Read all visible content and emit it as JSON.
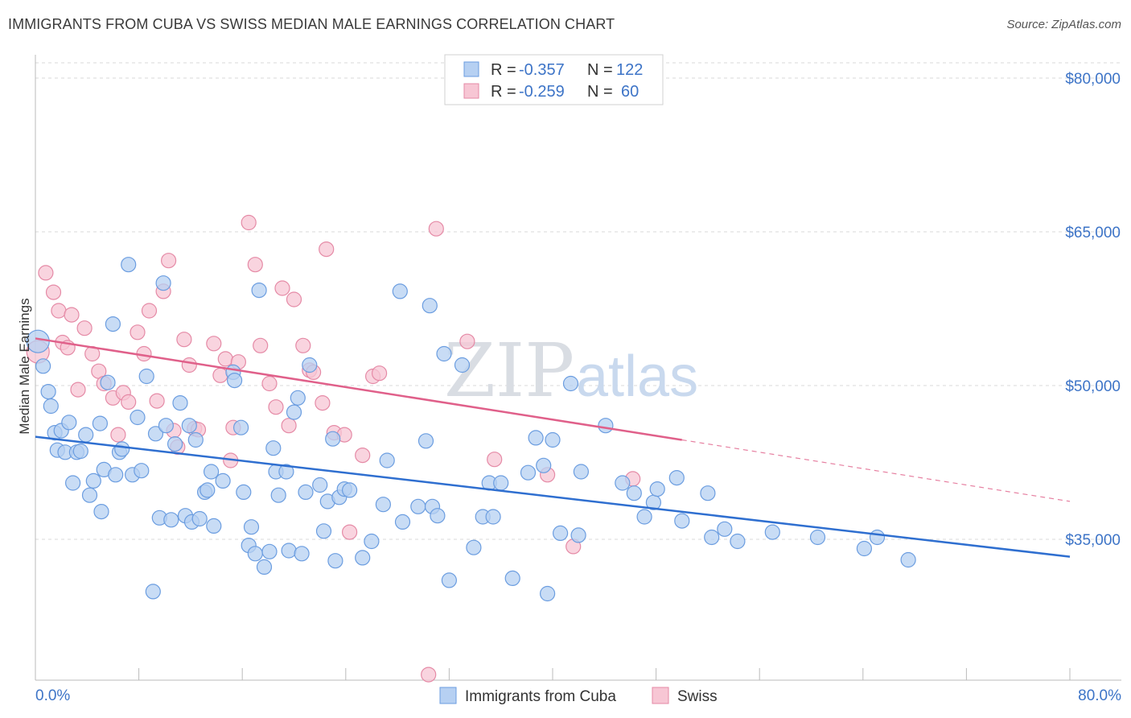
{
  "title": "IMMIGRANTS FROM CUBA VS SWISS MEDIAN MALE EARNINGS CORRELATION CHART",
  "source": "Source: ZipAtlas.com",
  "watermark": {
    "zip": "ZIP",
    "atlas": "atlas"
  },
  "colors": {
    "blue_fill": "#b6d0f2",
    "blue_stroke": "#6b9de0",
    "blue_line": "#2f6fd0",
    "pink_fill": "#f7c6d4",
    "pink_stroke": "#e58aa6",
    "pink_line": "#e0608a",
    "tick_text": "#3d74c7",
    "grid": "#d8d8d8"
  },
  "legend": {
    "rows": [
      {
        "r_label": "R = ",
        "r_value": "-0.357",
        "n_label": "N = ",
        "n_value": "122"
      },
      {
        "r_label": "R = ",
        "r_value": "-0.259",
        "n_label": "N = ",
        "n_value": "60"
      }
    ]
  },
  "chart_data": {
    "type": "scatter",
    "title": "IMMIGRANTS FROM CUBA VS SWISS MEDIAN MALE EARNINGS CORRELATION CHART",
    "xlabel": "",
    "ylabel": "Median Male Earnings",
    "xlim": [
      0,
      80
    ],
    "ylim": [
      20000,
      84000
    ],
    "x_tick_labels": [
      "0.0%",
      "80.0%"
    ],
    "y_ticks": [
      35000,
      50000,
      65000,
      80000
    ],
    "y_tick_labels": [
      "$35,000",
      "$50,000",
      "$65,000",
      "$80,000"
    ],
    "grid": true,
    "legend_position": "top-center",
    "series": [
      {
        "name": "Immigrants from Cuba",
        "color": "#6b9de0",
        "r": -0.357,
        "n": 122,
        "trend": {
          "x": [
            0,
            80
          ],
          "y": [
            45000,
            33300
          ]
        },
        "points": [
          [
            0.2,
            54300
          ],
          [
            0.6,
            51900
          ],
          [
            1.0,
            49400
          ],
          [
            1.2,
            48000
          ],
          [
            1.5,
            45400
          ],
          [
            1.7,
            43700
          ],
          [
            2.0,
            45600
          ],
          [
            2.3,
            43500
          ],
          [
            2.6,
            46400
          ],
          [
            2.9,
            40500
          ],
          [
            3.2,
            43500
          ],
          [
            3.5,
            43600
          ],
          [
            3.9,
            45200
          ],
          [
            4.2,
            39300
          ],
          [
            4.5,
            40700
          ],
          [
            5.0,
            46300
          ],
          [
            5.1,
            37700
          ],
          [
            5.3,
            41800
          ],
          [
            5.6,
            50300
          ],
          [
            6.0,
            56000
          ],
          [
            6.2,
            41300
          ],
          [
            6.5,
            43500
          ],
          [
            6.7,
            43800
          ],
          [
            7.2,
            61800
          ],
          [
            7.5,
            41300
          ],
          [
            7.9,
            46900
          ],
          [
            8.2,
            41700
          ],
          [
            8.6,
            50900
          ],
          [
            9.1,
            29900
          ],
          [
            9.3,
            45300
          ],
          [
            9.6,
            37100
          ],
          [
            9.9,
            60000
          ],
          [
            10.1,
            46100
          ],
          [
            10.5,
            36900
          ],
          [
            10.8,
            44300
          ],
          [
            11.2,
            48300
          ],
          [
            11.6,
            37300
          ],
          [
            11.9,
            46100
          ],
          [
            12.1,
            36700
          ],
          [
            12.4,
            44700
          ],
          [
            12.7,
            37000
          ],
          [
            13.1,
            39600
          ],
          [
            13.3,
            39800
          ],
          [
            13.6,
            41600
          ],
          [
            13.8,
            36300
          ],
          [
            14.5,
            40700
          ],
          [
            15.3,
            51300
          ],
          [
            15.4,
            50500
          ],
          [
            15.9,
            45900
          ],
          [
            16.1,
            39600
          ],
          [
            16.5,
            34400
          ],
          [
            16.7,
            36200
          ],
          [
            17.0,
            33600
          ],
          [
            17.3,
            59300
          ],
          [
            17.7,
            32300
          ],
          [
            18.1,
            33800
          ],
          [
            18.4,
            43900
          ],
          [
            18.6,
            41600
          ],
          [
            18.8,
            39300
          ],
          [
            19.4,
            41600
          ],
          [
            19.6,
            33900
          ],
          [
            20.0,
            47400
          ],
          [
            20.3,
            48800
          ],
          [
            20.6,
            33600
          ],
          [
            20.9,
            39600
          ],
          [
            21.2,
            52000
          ],
          [
            22.0,
            40300
          ],
          [
            22.3,
            35800
          ],
          [
            22.6,
            38700
          ],
          [
            23.0,
            44800
          ],
          [
            23.2,
            32900
          ],
          [
            23.5,
            39100
          ],
          [
            23.9,
            39900
          ],
          [
            24.3,
            39800
          ],
          [
            25.3,
            33200
          ],
          [
            26.0,
            34800
          ],
          [
            26.9,
            38400
          ],
          [
            27.2,
            42700
          ],
          [
            28.2,
            59200
          ],
          [
            28.4,
            36700
          ],
          [
            29.6,
            38200
          ],
          [
            30.2,
            44600
          ],
          [
            30.5,
            57800
          ],
          [
            30.7,
            38200
          ],
          [
            31.1,
            37300
          ],
          [
            31.6,
            53100
          ],
          [
            32.0,
            31000
          ],
          [
            33.0,
            52000
          ],
          [
            33.9,
            34200
          ],
          [
            34.6,
            37200
          ],
          [
            35.1,
            40500
          ],
          [
            35.4,
            37200
          ],
          [
            36.0,
            40500
          ],
          [
            36.9,
            31200
          ],
          [
            38.1,
            41500
          ],
          [
            38.7,
            44900
          ],
          [
            39.3,
            42200
          ],
          [
            39.6,
            29700
          ],
          [
            40.0,
            44700
          ],
          [
            40.6,
            35600
          ],
          [
            41.4,
            50200
          ],
          [
            42.0,
            35400
          ],
          [
            42.2,
            41600
          ],
          [
            44.1,
            46100
          ],
          [
            45.4,
            40500
          ],
          [
            46.3,
            39500
          ],
          [
            47.1,
            37200
          ],
          [
            47.8,
            38600
          ],
          [
            48.1,
            39900
          ],
          [
            49.6,
            41000
          ],
          [
            50.0,
            36800
          ],
          [
            52.0,
            39500
          ],
          [
            52.3,
            35200
          ],
          [
            53.3,
            36000
          ],
          [
            54.3,
            34800
          ],
          [
            57.0,
            35700
          ],
          [
            60.5,
            35200
          ],
          [
            64.1,
            34100
          ],
          [
            65.1,
            35200
          ],
          [
            67.5,
            33000
          ]
        ]
      },
      {
        "name": "Swiss",
        "color": "#e58aa6",
        "r": -0.259,
        "n": 60,
        "trend": {
          "x": [
            0,
            50
          ],
          "y": [
            54600,
            44700
          ]
        },
        "trend_ext": {
          "x": [
            50,
            80
          ],
          "y": [
            44700,
            38700
          ]
        },
        "points": [
          [
            0.2,
            53300
          ],
          [
            0.8,
            61000
          ],
          [
            1.4,
            59100
          ],
          [
            1.8,
            57300
          ],
          [
            2.1,
            54200
          ],
          [
            2.5,
            53700
          ],
          [
            2.8,
            56900
          ],
          [
            3.3,
            49600
          ],
          [
            3.8,
            55600
          ],
          [
            4.4,
            53100
          ],
          [
            4.9,
            51400
          ],
          [
            5.3,
            50200
          ],
          [
            6.0,
            48800
          ],
          [
            6.4,
            45200
          ],
          [
            6.8,
            49300
          ],
          [
            7.2,
            48400
          ],
          [
            7.9,
            55200
          ],
          [
            8.4,
            53100
          ],
          [
            8.8,
            57300
          ],
          [
            9.4,
            48500
          ],
          [
            9.9,
            59200
          ],
          [
            10.3,
            62200
          ],
          [
            10.7,
            45600
          ],
          [
            11.0,
            44000
          ],
          [
            11.5,
            54500
          ],
          [
            11.9,
            52000
          ],
          [
            12.3,
            45800
          ],
          [
            12.6,
            45700
          ],
          [
            13.8,
            54100
          ],
          [
            14.3,
            51000
          ],
          [
            14.7,
            52600
          ],
          [
            15.1,
            42700
          ],
          [
            15.3,
            45900
          ],
          [
            15.7,
            52300
          ],
          [
            16.5,
            65900
          ],
          [
            17.0,
            61800
          ],
          [
            17.4,
            53900
          ],
          [
            18.1,
            50200
          ],
          [
            18.6,
            47900
          ],
          [
            19.1,
            59500
          ],
          [
            19.6,
            46100
          ],
          [
            20.0,
            58400
          ],
          [
            20.7,
            53900
          ],
          [
            21.2,
            51500
          ],
          [
            21.5,
            51300
          ],
          [
            22.2,
            48300
          ],
          [
            22.5,
            63300
          ],
          [
            23.1,
            45400
          ],
          [
            23.9,
            45200
          ],
          [
            24.3,
            35700
          ],
          [
            25.3,
            43200
          ],
          [
            26.1,
            50900
          ],
          [
            26.6,
            51200
          ],
          [
            30.4,
            21800
          ],
          [
            31.0,
            65300
          ],
          [
            33.4,
            54300
          ],
          [
            35.5,
            42800
          ],
          [
            39.6,
            41300
          ],
          [
            41.6,
            34300
          ],
          [
            46.2,
            40900
          ]
        ]
      }
    ]
  },
  "bottom_legend": [
    {
      "label": "Immigrants from Cuba"
    },
    {
      "label": "Swiss"
    }
  ]
}
